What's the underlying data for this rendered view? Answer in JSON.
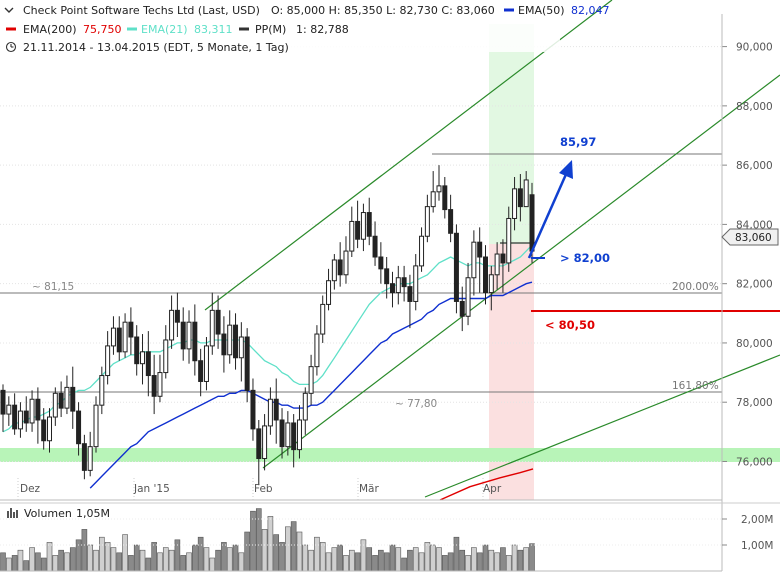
{
  "header": {
    "line1": {
      "title": "Check Point Software Techs Ltd (Last, USD)",
      "ohlc": "O: 85,000  H: 85,350  L: 82,730  C: 83,060",
      "ema50_label": "EMA(50)",
      "ema50_value": "82,047"
    },
    "line2": {
      "ema200_label": "EMA(200)",
      "ema200_value": "75,750",
      "ema21_label": "EMA(21)",
      "ema21_value": "83,311",
      "pp_label": "PP(M)",
      "pp_value": "1: 82,788"
    },
    "line3": {
      "range": "21.11.2014 - 13.04.2015 (EDT, 5 Monate, 1 Tag)"
    }
  },
  "colors": {
    "ema200": "#e00000",
    "ema21": "#5fe0c8",
    "ema50": "#1030d0",
    "pp": "#333333",
    "channel": "#2a8a2a",
    "arrow": "#1040d0",
    "support": "#e00000"
  },
  "chart_data": {
    "type": "candlestick",
    "ylim": [
      74.7,
      91.1
    ],
    "yticks": [
      "90,000",
      "88,000",
      "86,000",
      "84,000",
      "82,000",
      "80,000",
      "78,000",
      "76,000"
    ],
    "ytick_values": [
      90,
      88,
      86,
      84,
      82,
      80,
      78,
      76
    ],
    "xticks": [
      "Dez",
      "Jan '15",
      "Feb",
      "Mär",
      "Apr"
    ],
    "last_price_label": "83,060",
    "last_price": 83.06,
    "levels": [
      {
        "label": "~ 81,15",
        "value": 81.15
      },
      {
        "label": "~ 77,80",
        "value": 77.8
      },
      {
        "label": "200.00%",
        "value": 81.15
      },
      {
        "label": "161.80%",
        "value": 77.8
      }
    ],
    "annotations": [
      {
        "label": "85,97",
        "value": 85.97
      },
      {
        "label": "> 82,00",
        "value": 82.0
      },
      {
        "label": "< 80,50",
        "value": 80.5
      }
    ],
    "candles": [
      [
        78.4,
        77.6,
        78.6,
        77.0
      ],
      [
        77.6,
        77.9,
        78.2,
        77.2
      ],
      [
        77.9,
        77.1,
        78.3,
        76.9
      ],
      [
        77.1,
        77.7,
        78.0,
        76.8
      ],
      [
        77.7,
        77.3,
        78.2,
        77.0
      ],
      [
        77.3,
        78.1,
        78.4,
        77.0
      ],
      [
        78.1,
        77.4,
        78.5,
        76.6
      ],
      [
        77.4,
        76.7,
        77.8,
        76.4
      ],
      [
        76.7,
        77.5,
        77.8,
        76.3
      ],
      [
        77.5,
        78.3,
        78.5,
        77.2
      ],
      [
        78.3,
        77.8,
        78.7,
        77.5
      ],
      [
        77.8,
        78.5,
        78.9,
        77.6
      ],
      [
        78.5,
        77.7,
        79.2,
        77.1
      ],
      [
        77.7,
        76.6,
        78.0,
        76.2
      ],
      [
        76.6,
        75.7,
        76.9,
        75.4
      ],
      [
        75.7,
        76.5,
        77.0,
        75.5
      ],
      [
        76.5,
        77.9,
        78.2,
        76.3
      ],
      [
        77.9,
        78.9,
        79.2,
        77.6
      ],
      [
        78.9,
        79.9,
        80.4,
        78.6
      ],
      [
        79.9,
        80.5,
        80.9,
        79.6
      ],
      [
        80.5,
        79.7,
        80.9,
        79.4
      ],
      [
        79.7,
        80.7,
        81.0,
        79.5
      ],
      [
        80.7,
        80.2,
        81.2,
        79.6
      ],
      [
        80.2,
        79.3,
        80.6,
        78.9
      ],
      [
        79.3,
        79.7,
        80.3,
        78.6
      ],
      [
        79.7,
        78.9,
        80.4,
        78.2
      ],
      [
        78.9,
        78.2,
        79.6,
        77.6
      ],
      [
        78.2,
        79.0,
        79.6,
        78.0
      ],
      [
        79.0,
        80.1,
        80.6,
        78.8
      ],
      [
        80.1,
        81.1,
        81.6,
        79.8
      ],
      [
        81.1,
        80.7,
        81.7,
        80.2
      ],
      [
        80.7,
        79.8,
        81.2,
        79.4
      ],
      [
        79.8,
        80.7,
        81.1,
        79.3
      ],
      [
        80.7,
        79.4,
        81.3,
        78.9
      ],
      [
        79.4,
        78.7,
        79.8,
        78.2
      ],
      [
        78.7,
        79.9,
        80.2,
        78.4
      ],
      [
        79.9,
        81.1,
        81.7,
        79.6
      ],
      [
        81.1,
        80.3,
        81.6,
        79.8
      ],
      [
        80.3,
        79.6,
        80.9,
        79.0
      ],
      [
        79.6,
        80.6,
        81.1,
        79.3
      ],
      [
        80.6,
        79.5,
        81.0,
        79.1
      ],
      [
        79.5,
        80.2,
        80.7,
        78.7
      ],
      [
        80.2,
        78.4,
        80.5,
        78.0
      ],
      [
        78.4,
        77.1,
        78.8,
        76.7
      ],
      [
        77.1,
        76.1,
        77.4,
        75.2
      ],
      [
        76.1,
        77.2,
        77.6,
        75.7
      ],
      [
        77.2,
        78.1,
        78.5,
        76.9
      ],
      [
        78.1,
        77.4,
        78.8,
        76.6
      ],
      [
        77.4,
        76.5,
        77.8,
        76.1
      ],
      [
        76.5,
        77.3,
        77.7,
        76.2
      ],
      [
        77.3,
        76.4,
        77.6,
        75.8
      ],
      [
        76.4,
        77.4,
        77.9,
        76.1
      ],
      [
        77.4,
        78.3,
        78.5,
        76.9
      ],
      [
        78.3,
        79.2,
        79.6,
        77.9
      ],
      [
        79.2,
        80.3,
        80.6,
        78.9
      ],
      [
        80.3,
        81.3,
        81.6,
        80.0
      ],
      [
        81.3,
        82.1,
        82.5,
        81.1
      ],
      [
        82.1,
        82.8,
        83.0,
        81.8
      ],
      [
        82.8,
        82.3,
        83.4,
        81.9
      ],
      [
        82.3,
        83.1,
        83.6,
        82.0
      ],
      [
        83.1,
        84.1,
        84.6,
        82.9
      ],
      [
        84.1,
        83.5,
        84.8,
        83.2
      ],
      [
        83.5,
        84.4,
        84.7,
        83.1
      ],
      [
        84.4,
        83.6,
        84.9,
        83.3
      ],
      [
        83.6,
        82.9,
        84.1,
        82.6
      ],
      [
        82.9,
        82.5,
        83.4,
        82.0
      ],
      [
        82.5,
        82.0,
        82.9,
        81.5
      ],
      [
        82.0,
        81.7,
        82.4,
        81.2
      ],
      [
        81.7,
        82.2,
        82.6,
        81.3
      ],
      [
        82.2,
        81.9,
        82.6,
        81.4
      ],
      [
        81.9,
        81.4,
        82.3,
        80.5
      ],
      [
        81.4,
        82.6,
        83.0,
        81.1
      ],
      [
        82.6,
        83.6,
        83.9,
        82.4
      ],
      [
        83.6,
        84.6,
        85.0,
        83.4
      ],
      [
        84.6,
        85.1,
        85.8,
        84.4
      ],
      [
        85.1,
        85.3,
        86.0,
        84.8
      ],
      [
        85.3,
        84.5,
        85.6,
        84.2
      ],
      [
        84.5,
        83.7,
        85.0,
        83.4
      ],
      [
        83.7,
        81.4,
        84.0,
        81.0
      ],
      [
        81.4,
        80.9,
        81.9,
        80.4
      ],
      [
        80.9,
        82.2,
        82.7,
        80.6
      ],
      [
        82.2,
        83.4,
        83.8,
        81.6
      ],
      [
        83.4,
        82.9,
        83.9,
        81.7
      ],
      [
        82.9,
        81.7,
        83.3,
        81.3
      ],
      [
        81.7,
        82.3,
        82.6,
        81.1
      ],
      [
        82.3,
        83.0,
        83.4,
        81.8
      ],
      [
        83.0,
        82.7,
        83.5,
        81.7
      ],
      [
        82.7,
        84.2,
        84.6,
        82.4
      ],
      [
        84.2,
        85.2,
        85.6,
        83.8
      ],
      [
        85.2,
        84.6,
        85.7,
        84.1
      ],
      [
        84.6,
        85.5,
        85.8,
        84.9
      ],
      [
        85.0,
        83.1,
        85.4,
        82.7
      ]
    ],
    "ema21": [
      77.0,
      77.1,
      77.3,
      77.3,
      77.4,
      77.5,
      77.5,
      77.6,
      77.7,
      77.9,
      78.0,
      78.2,
      78.3,
      78.4,
      78.4,
      78.5,
      78.7,
      78.9,
      79.1,
      79.3,
      79.4,
      79.5,
      79.6,
      79.6,
      79.7,
      79.7,
      79.7,
      79.7,
      79.8,
      79.9,
      80.0,
      80.0,
      80.1,
      80.1,
      80.0,
      80.0,
      80.1,
      80.1,
      80.1,
      80.1,
      80.1,
      80.1,
      80.0,
      79.8,
      79.6,
      79.4,
      79.3,
      79.2,
      79.0,
      78.9,
      78.7,
      78.6,
      78.6,
      78.6,
      78.7,
      78.9,
      79.2,
      79.5,
      79.8,
      80.1,
      80.4,
      80.7,
      81.0,
      81.3,
      81.5,
      81.7,
      81.8,
      81.9,
      82.0,
      82.0,
      82.0,
      82.1,
      82.2,
      82.3,
      82.5,
      82.7,
      82.8,
      82.9,
      82.8,
      82.7,
      82.6,
      82.7,
      82.7,
      82.6,
      82.6,
      82.6,
      82.6,
      82.7,
      82.8,
      82.9,
      83.1,
      83.3
    ],
    "ema50": [
      null,
      null,
      null,
      null,
      null,
      null,
      null,
      null,
      null,
      null,
      null,
      null,
      null,
      null,
      null,
      75.1,
      75.3,
      75.5,
      75.7,
      75.9,
      76.1,
      76.3,
      76.5,
      76.6,
      76.8,
      77.0,
      77.1,
      77.2,
      77.3,
      77.4,
      77.5,
      77.6,
      77.7,
      77.8,
      77.9,
      78.0,
      78.1,
      78.2,
      78.2,
      78.3,
      78.3,
      78.4,
      78.4,
      78.3,
      78.2,
      78.1,
      78.0,
      78.0,
      77.9,
      77.9,
      77.8,
      77.8,
      77.8,
      77.9,
      77.9,
      78.0,
      78.2,
      78.4,
      78.6,
      78.8,
      79.0,
      79.2,
      79.4,
      79.6,
      79.8,
      80.0,
      80.1,
      80.3,
      80.4,
      80.5,
      80.6,
      80.7,
      80.8,
      81.0,
      81.1,
      81.3,
      81.4,
      81.5,
      81.5,
      81.5,
      81.5,
      81.5,
      81.5,
      81.5,
      81.6,
      81.6,
      81.6,
      81.7,
      81.8,
      81.9,
      82.0,
      82.05
    ],
    "ema200": [
      [
        440,
        74.7
      ],
      [
        470,
        75.15
      ],
      [
        500,
        75.45
      ],
      [
        520,
        75.62
      ],
      [
        533,
        75.75
      ]
    ],
    "volume": {
      "label": "Volumen",
      "value": "1,05M",
      "yticks": [
        "2,00M",
        "1,00M"
      ],
      "ytick_values": [
        2.0,
        1.0
      ],
      "bars": [
        0.7,
        0.5,
        0.6,
        0.8,
        0.4,
        0.9,
        0.7,
        0.5,
        1.1,
        0.6,
        0.8,
        0.7,
        0.9,
        1.2,
        1.6,
        1.0,
        0.8,
        1.3,
        1.1,
        0.9,
        0.7,
        1.4,
        0.6,
        1.0,
        0.8,
        0.5,
        1.1,
        0.7,
        0.9,
        0.8,
        1.2,
        0.6,
        0.7,
        1.0,
        1.3,
        0.9,
        0.5,
        0.8,
        1.1,
        0.9,
        1.0,
        0.7,
        1.5,
        2.3,
        2.4,
        1.6,
        2.1,
        1.4,
        1.1,
        1.7,
        1.9,
        1.5,
        1.0,
        0.8,
        1.3,
        1.1,
        0.7,
        0.9,
        1.0,
        0.6,
        0.8,
        0.7,
        1.2,
        0.9,
        0.6,
        0.8,
        0.7,
        1.0,
        0.9,
        0.5,
        0.8,
        0.9,
        0.7,
        1.1,
        1.0,
        0.9,
        0.6,
        0.7,
        1.3,
        0.8,
        0.6,
        0.9,
        0.7,
        1.0,
        0.8,
        0.7,
        0.9,
        0.6,
        1.0,
        0.8,
        0.9,
        1.05
      ]
    }
  }
}
